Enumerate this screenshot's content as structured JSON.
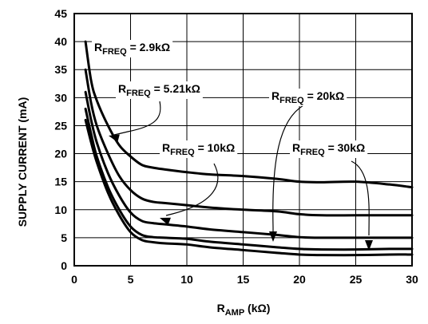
{
  "chart_data": {
    "type": "line",
    "xlabel_main": "R",
    "xlabel_sub": "AMP",
    "xlabel_unit": " (kΩ)",
    "ylabel": "SUPPLY CURRENT (mA)",
    "xlim": [
      0,
      30
    ],
    "ylim": [
      0,
      45
    ],
    "xticks": [
      "0",
      "5",
      "10",
      "15",
      "20",
      "25",
      "30"
    ],
    "yticks": [
      "0",
      "5",
      "10",
      "15",
      "20",
      "25",
      "30",
      "35",
      "40",
      "45"
    ],
    "grid": true,
    "series": [
      {
        "name_main": "R",
        "name_sub": "FREQ",
        "name_value": " = 2.9kΩ",
        "x": [
          1,
          1.5,
          2,
          3,
          4,
          5,
          6,
          7,
          8,
          10,
          12,
          15,
          18,
          20,
          22,
          25,
          28,
          30
        ],
        "y": [
          40,
          33,
          29.5,
          25,
          21.5,
          19.5,
          18,
          17.5,
          17.2,
          16.7,
          16.3,
          16,
          15.5,
          15,
          14.9,
          15,
          14.5,
          14
        ]
      },
      {
        "name_main": "R",
        "name_sub": "FREQ",
        "name_value": " = 5.21kΩ",
        "x": [
          1,
          1.5,
          2,
          3,
          4,
          5,
          6,
          7,
          8,
          10,
          12,
          15,
          18,
          20,
          22,
          25,
          28,
          30
        ],
        "y": [
          35,
          29,
          25,
          20,
          16,
          13.5,
          12,
          11.4,
          11.2,
          10.8,
          10.4,
          10,
          9.7,
          9.2,
          9,
          9,
          9,
          9
        ]
      },
      {
        "name_main": "R",
        "name_sub": "FREQ",
        "name_value": " = 10kΩ",
        "x": [
          1,
          1.5,
          2,
          3,
          4,
          5,
          6,
          7,
          8,
          10,
          12,
          15,
          18,
          20,
          22,
          25,
          28,
          30
        ],
        "y": [
          31,
          26,
          22,
          16.5,
          12.5,
          9.5,
          8,
          7.6,
          7.4,
          7,
          6.5,
          6,
          5.5,
          5.1,
          5,
          5,
          5,
          5
        ]
      },
      {
        "name_main": "R",
        "name_sub": "FREQ",
        "name_value": " = 20kΩ",
        "x": [
          1,
          1.5,
          2,
          3,
          4,
          5,
          6,
          7,
          8,
          10,
          12,
          15,
          18,
          20,
          22,
          25,
          28,
          30
        ],
        "y": [
          28,
          23.5,
          19.5,
          14,
          10,
          7,
          5.5,
          5.1,
          5,
          4.8,
          4.3,
          3.8,
          3.3,
          3,
          2.9,
          2.9,
          3,
          3
        ]
      },
      {
        "name_main": "R",
        "name_sub": "FREQ",
        "name_value": " = 30kΩ",
        "x": [
          1,
          1.5,
          2,
          3,
          4,
          5,
          6,
          7,
          8,
          10,
          12,
          15,
          18,
          20,
          22,
          25,
          28,
          30
        ],
        "y": [
          26,
          22,
          18.5,
          13,
          9,
          6,
          4.6,
          4.2,
          4,
          3.8,
          3.3,
          2.8,
          2.3,
          2,
          1.9,
          1.9,
          2,
          2
        ]
      }
    ]
  }
}
